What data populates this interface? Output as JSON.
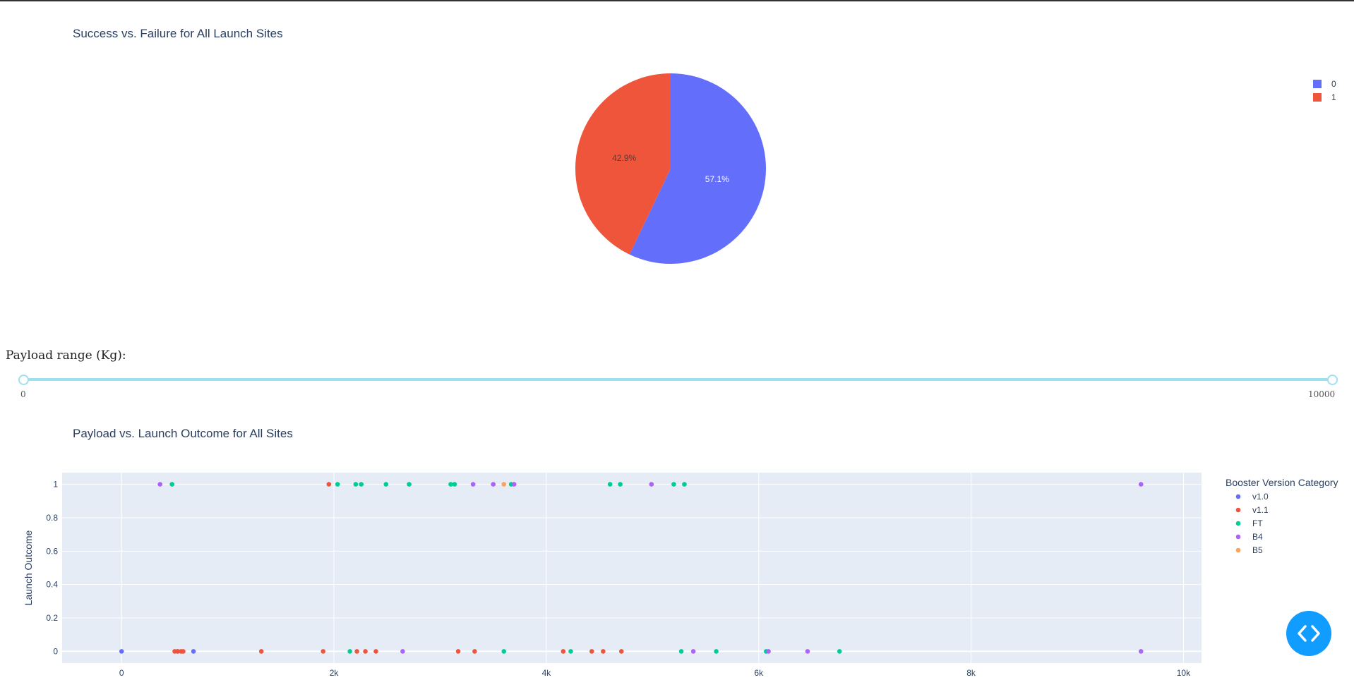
{
  "pie_chart": {
    "title": "Success vs. Failure for All Launch Sites",
    "legend": [
      "0",
      "1"
    ]
  },
  "slider": {
    "label": "Payload range (Kg):",
    "min_label": "0",
    "max_label": "10000",
    "range": [
      0,
      10000
    ]
  },
  "scatter_chart": {
    "title": "Payload vs. Launch Outcome for All Sites",
    "ylabel": "Launch Outcome",
    "legend_title": "Booster Version Category"
  },
  "colors": {
    "v1.0": "#636efa",
    "v1.1": "#ef553b",
    "FT": "#00cc96",
    "B4": "#ab63fa",
    "B5": "#ffa15a"
  },
  "fab_icon": "code-icon",
  "chart_data": [
    {
      "type": "pie",
      "title": "Success vs. Failure for All Launch Sites",
      "labels": [
        "0",
        "1"
      ],
      "values": [
        57.1,
        42.9
      ],
      "text": [
        "57.1%",
        "42.9%"
      ],
      "colors": [
        "#636efa",
        "#ef553b"
      ]
    },
    {
      "type": "scatter",
      "title": "Payload vs. Launch Outcome for All Sites",
      "xlabel": "",
      "ylabel": "Launch Outcome",
      "xlim": [
        -560,
        10170
      ],
      "ylim": [
        -0.07,
        1.07
      ],
      "xticks": [
        0,
        2000,
        4000,
        6000,
        8000,
        10000
      ],
      "xtick_labels": [
        "0",
        "2k",
        "4k",
        "6k",
        "8k",
        "10k"
      ],
      "yticks": [
        0,
        0.2,
        0.4,
        0.6,
        0.8,
        1
      ],
      "ytick_labels": [
        "0",
        "0.2",
        "0.4",
        "0.6",
        "0.8",
        "1"
      ],
      "legend_title": "Booster Version Category",
      "series": [
        {
          "name": "v1.0",
          "points": [
            [
              0,
              0
            ],
            [
              525,
              0
            ],
            [
              677,
              0
            ]
          ]
        },
        {
          "name": "v1.1",
          "points": [
            [
              500,
              0
            ],
            [
              530,
              0
            ],
            [
              560,
              0
            ],
            [
              580,
              0
            ],
            [
              1316,
              0
            ],
            [
              1898,
              0
            ],
            [
              2216,
              0
            ],
            [
              2296,
              0
            ],
            [
              2395,
              0
            ],
            [
              3170,
              0
            ],
            [
              3325,
              0
            ],
            [
              4159,
              0
            ],
            [
              4428,
              0
            ],
            [
              4535,
              0
            ],
            [
              4707,
              0
            ],
            [
              1952,
              1
            ]
          ]
        },
        {
          "name": "FT",
          "points": [
            [
              475,
              1
            ],
            [
              2034,
              1
            ],
            [
              2205,
              1
            ],
            [
              2257,
              1
            ],
            [
              2490,
              1
            ],
            [
              2708,
              1
            ],
            [
              3100,
              1
            ],
            [
              3136,
              1
            ],
            [
              3669,
              1
            ],
            [
              4600,
              1
            ],
            [
              4696,
              1
            ],
            [
              5200,
              1
            ],
            [
              5300,
              1
            ],
            [
              2150,
              0
            ],
            [
              3600,
              0
            ],
            [
              4230,
              0
            ],
            [
              5271,
              0
            ],
            [
              5600,
              0
            ],
            [
              6070,
              0
            ],
            [
              6761,
              0
            ]
          ]
        },
        {
          "name": "B4",
          "points": [
            [
              362,
              1
            ],
            [
              3310,
              1
            ],
            [
              3500,
              1
            ],
            [
              3696,
              1
            ],
            [
              4990,
              1
            ],
            [
              9600,
              1
            ],
            [
              2647,
              0
            ],
            [
              5384,
              0
            ],
            [
              6092,
              0
            ],
            [
              6460,
              0
            ],
            [
              9600,
              0
            ]
          ]
        },
        {
          "name": "B5",
          "points": [
            [
              3600,
              1
            ]
          ]
        }
      ]
    }
  ]
}
